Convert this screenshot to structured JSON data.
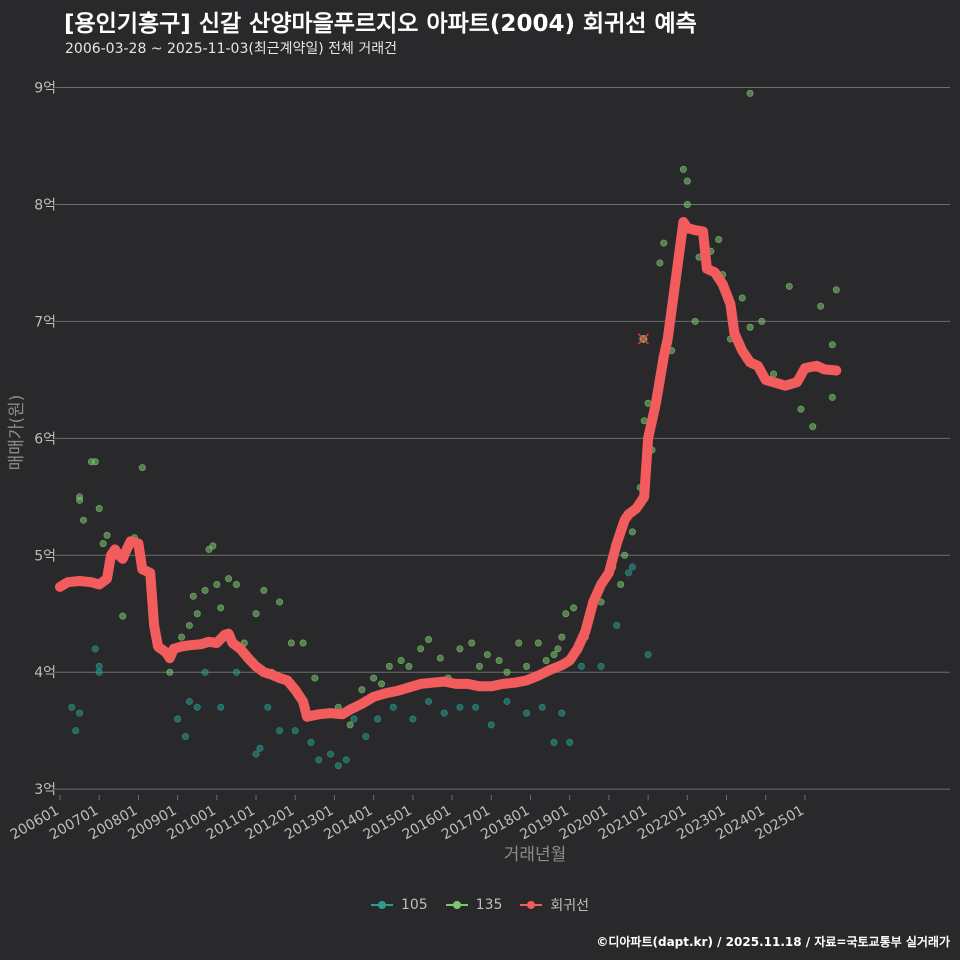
{
  "title": "[용인기흥구] 신갈 산양마을푸르지오 아파트(2004) 회귀선 예측",
  "subtitle": "2006-03-28 ~ 2025-11-03(최근계약일) 전체 거래건",
  "footer": "©디아파트(dapt.kr) / 2025.11.18 / 자료=국토교통부 실거래가",
  "colors": {
    "background": "#29292b",
    "grid": "#6e6e72",
    "s105": "#2a9d8f",
    "s135": "#7bc96f",
    "regression": "#f25c5c"
  },
  "chart_data": {
    "type": "scatter",
    "title": "[용인기흥구] 신갈 산양마을푸르지오 아파트(2004) 회귀선 예측",
    "xlabel": "거래년월",
    "ylabel": "매매가(원)",
    "xlim": [
      2006.0,
      2028.7
    ],
    "ylim": [
      2.95,
      9.15
    ],
    "x_ticks": [
      {
        "value": 2006.0,
        "label": "200601"
      },
      {
        "value": 2007.0,
        "label": "200701"
      },
      {
        "value": 2008.0,
        "label": "200801"
      },
      {
        "value": 2009.0,
        "label": "200901"
      },
      {
        "value": 2010.0,
        "label": "201001"
      },
      {
        "value": 2011.0,
        "label": "201101"
      },
      {
        "value": 2012.0,
        "label": "201201"
      },
      {
        "value": 2013.0,
        "label": "201301"
      },
      {
        "value": 2014.0,
        "label": "201401"
      },
      {
        "value": 2015.0,
        "label": "201501"
      },
      {
        "value": 2016.0,
        "label": "201601"
      },
      {
        "value": 2017.0,
        "label": "201701"
      },
      {
        "value": 2018.0,
        "label": "201801"
      },
      {
        "value": 2019.0,
        "label": "201901"
      },
      {
        "value": 2020.0,
        "label": "202001"
      },
      {
        "value": 2021.0,
        "label": "202101"
      },
      {
        "value": 2022.0,
        "label": "202201"
      },
      {
        "value": 2023.0,
        "label": "202301"
      },
      {
        "value": 2024.0,
        "label": "202401"
      },
      {
        "value": 2025.0,
        "label": "202501"
      }
    ],
    "y_ticks": [
      {
        "value": 3,
        "label": "3억"
      },
      {
        "value": 4,
        "label": "4억"
      },
      {
        "value": 5,
        "label": "5억"
      },
      {
        "value": 6,
        "label": "6억"
      },
      {
        "value": 7,
        "label": "7억"
      },
      {
        "value": 8,
        "label": "8억"
      },
      {
        "value": 9,
        "label": "9억"
      }
    ],
    "series": [
      {
        "name": "105",
        "color": "#2a9d8f",
        "points": [
          [
            2006.3,
            3.7
          ],
          [
            2006.4,
            3.5
          ],
          [
            2006.5,
            3.65
          ],
          [
            2006.9,
            4.2
          ],
          [
            2007.0,
            4.05
          ],
          [
            2007.0,
            4.0
          ],
          [
            2009.0,
            3.6
          ],
          [
            2009.2,
            3.45
          ],
          [
            2009.3,
            3.75
          ],
          [
            2009.5,
            3.7
          ],
          [
            2009.7,
            4.0
          ],
          [
            2010.1,
            3.7
          ],
          [
            2010.5,
            4.0
          ],
          [
            2011.0,
            3.3
          ],
          [
            2011.1,
            3.35
          ],
          [
            2011.3,
            3.7
          ],
          [
            2011.6,
            3.5
          ],
          [
            2012.0,
            3.5
          ],
          [
            2012.4,
            3.4
          ],
          [
            2012.6,
            3.25
          ],
          [
            2012.9,
            3.3
          ],
          [
            2013.1,
            3.2
          ],
          [
            2013.3,
            3.25
          ],
          [
            2013.5,
            3.6
          ],
          [
            2013.8,
            3.45
          ],
          [
            2014.1,
            3.6
          ],
          [
            2014.5,
            3.7
          ],
          [
            2015.0,
            3.6
          ],
          [
            2015.4,
            3.75
          ],
          [
            2015.8,
            3.65
          ],
          [
            2016.2,
            3.7
          ],
          [
            2016.6,
            3.7
          ],
          [
            2017.0,
            3.55
          ],
          [
            2017.4,
            3.75
          ],
          [
            2017.9,
            3.65
          ],
          [
            2018.3,
            3.7
          ],
          [
            2018.6,
            3.4
          ],
          [
            2018.8,
            3.65
          ],
          [
            2019.0,
            3.4
          ],
          [
            2019.3,
            4.05
          ],
          [
            2019.8,
            4.05
          ],
          [
            2020.2,
            4.4
          ],
          [
            2020.5,
            4.85
          ],
          [
            2020.6,
            4.9
          ],
          [
            2021.0,
            4.15
          ]
        ]
      },
      {
        "name": "135",
        "color": "#7bc96f",
        "points": [
          [
            2006.5,
            5.5
          ],
          [
            2006.5,
            5.47
          ],
          [
            2006.6,
            5.3
          ],
          [
            2006.8,
            5.8
          ],
          [
            2006.9,
            5.8
          ],
          [
            2007.0,
            5.4
          ],
          [
            2007.1,
            5.1
          ],
          [
            2007.2,
            5.17
          ],
          [
            2007.6,
            4.48
          ],
          [
            2007.9,
            5.15
          ],
          [
            2008.1,
            5.75
          ],
          [
            2008.5,
            4.2
          ],
          [
            2008.8,
            4.0
          ],
          [
            2009.1,
            4.3
          ],
          [
            2009.3,
            4.4
          ],
          [
            2009.4,
            4.65
          ],
          [
            2009.5,
            4.5
          ],
          [
            2009.7,
            4.7
          ],
          [
            2009.8,
            5.05
          ],
          [
            2009.9,
            5.08
          ],
          [
            2010.0,
            4.75
          ],
          [
            2010.1,
            4.55
          ],
          [
            2010.3,
            4.8
          ],
          [
            2010.5,
            4.75
          ],
          [
            2010.7,
            4.25
          ],
          [
            2011.0,
            4.5
          ],
          [
            2011.2,
            4.7
          ],
          [
            2011.4,
            4.0
          ],
          [
            2011.6,
            4.6
          ],
          [
            2011.9,
            4.25
          ],
          [
            2012.2,
            4.25
          ],
          [
            2012.5,
            3.95
          ],
          [
            2013.1,
            3.7
          ],
          [
            2013.4,
            3.55
          ],
          [
            2013.7,
            3.85
          ],
          [
            2014.0,
            3.95
          ],
          [
            2014.2,
            3.9
          ],
          [
            2014.4,
            4.05
          ],
          [
            2014.7,
            4.1
          ],
          [
            2014.9,
            4.05
          ],
          [
            2015.2,
            4.2
          ],
          [
            2015.4,
            4.28
          ],
          [
            2015.7,
            4.12
          ],
          [
            2015.9,
            3.95
          ],
          [
            2016.2,
            4.2
          ],
          [
            2016.5,
            4.25
          ],
          [
            2016.7,
            4.05
          ],
          [
            2016.9,
            4.15
          ],
          [
            2017.2,
            4.1
          ],
          [
            2017.4,
            4.0
          ],
          [
            2017.7,
            4.25
          ],
          [
            2017.9,
            4.05
          ],
          [
            2018.2,
            4.25
          ],
          [
            2018.4,
            4.1
          ],
          [
            2018.6,
            4.15
          ],
          [
            2018.7,
            4.2
          ],
          [
            2018.8,
            4.3
          ],
          [
            2018.9,
            4.5
          ],
          [
            2019.1,
            4.55
          ],
          [
            2019.4,
            4.3
          ],
          [
            2019.6,
            4.6
          ],
          [
            2019.8,
            4.6
          ],
          [
            2020.1,
            4.9
          ],
          [
            2020.3,
            4.75
          ],
          [
            2020.4,
            5.0
          ],
          [
            2020.6,
            5.2
          ],
          [
            2020.8,
            5.58
          ],
          [
            2020.9,
            6.15
          ],
          [
            2021.0,
            6.3
          ],
          [
            2021.1,
            5.9
          ],
          [
            2021.3,
            7.5
          ],
          [
            2021.4,
            7.67
          ],
          [
            2021.6,
            6.75
          ],
          [
            2021.9,
            8.3
          ],
          [
            2022.0,
            8.2
          ],
          [
            2022.0,
            8.0
          ],
          [
            2022.2,
            7.0
          ],
          [
            2022.3,
            7.55
          ],
          [
            2022.6,
            7.6
          ],
          [
            2022.8,
            7.7
          ],
          [
            2022.9,
            7.4
          ],
          [
            2023.1,
            6.85
          ],
          [
            2023.4,
            7.2
          ],
          [
            2023.6,
            6.95
          ],
          [
            2023.9,
            7.0
          ],
          [
            2024.2,
            6.55
          ],
          [
            2024.6,
            7.3
          ],
          [
            2024.9,
            6.25
          ],
          [
            2025.2,
            6.1
          ],
          [
            2025.4,
            7.13
          ],
          [
            2025.7,
            6.8
          ],
          [
            2025.8,
            7.27
          ],
          [
            2025.7,
            6.35
          ],
          [
            2023.6,
            8.95
          ]
        ]
      },
      {
        "name": "회귀선",
        "color": "#f25c5c",
        "points": [
          [
            2006.0,
            4.73
          ],
          [
            2006.2,
            4.77
          ],
          [
            2006.5,
            4.78
          ],
          [
            2006.8,
            4.77
          ],
          [
            2007.0,
            4.75
          ],
          [
            2007.2,
            4.8
          ],
          [
            2007.3,
            5.0
          ],
          [
            2007.4,
            5.05
          ],
          [
            2007.5,
            5.0
          ],
          [
            2007.6,
            4.97
          ],
          [
            2007.7,
            5.05
          ],
          [
            2007.8,
            5.12
          ],
          [
            2008.0,
            5.1
          ],
          [
            2008.1,
            4.88
          ],
          [
            2008.3,
            4.85
          ],
          [
            2008.4,
            4.4
          ],
          [
            2008.5,
            4.22
          ],
          [
            2008.7,
            4.17
          ],
          [
            2008.8,
            4.12
          ],
          [
            2008.9,
            4.2
          ],
          [
            2009.1,
            4.22
          ],
          [
            2009.3,
            4.23
          ],
          [
            2009.6,
            4.24
          ],
          [
            2009.8,
            4.26
          ],
          [
            2010.0,
            4.25
          ],
          [
            2010.2,
            4.32
          ],
          [
            2010.3,
            4.33
          ],
          [
            2010.4,
            4.25
          ],
          [
            2010.6,
            4.2
          ],
          [
            2010.8,
            4.12
          ],
          [
            2011.0,
            4.05
          ],
          [
            2011.2,
            4.0
          ],
          [
            2011.4,
            3.98
          ],
          [
            2011.6,
            3.95
          ],
          [
            2011.8,
            3.93
          ],
          [
            2012.0,
            3.85
          ],
          [
            2012.2,
            3.75
          ],
          [
            2012.3,
            3.62
          ],
          [
            2012.6,
            3.64
          ],
          [
            2012.9,
            3.65
          ],
          [
            2013.2,
            3.64
          ],
          [
            2013.4,
            3.68
          ],
          [
            2013.7,
            3.73
          ],
          [
            2014.0,
            3.79
          ],
          [
            2014.3,
            3.82
          ],
          [
            2014.6,
            3.84
          ],
          [
            2014.9,
            3.87
          ],
          [
            2015.2,
            3.9
          ],
          [
            2015.5,
            3.91
          ],
          [
            2015.8,
            3.92
          ],
          [
            2016.1,
            3.9
          ],
          [
            2016.4,
            3.9
          ],
          [
            2016.7,
            3.88
          ],
          [
            2017.0,
            3.88
          ],
          [
            2017.3,
            3.9
          ],
          [
            2017.6,
            3.91
          ],
          [
            2017.9,
            3.93
          ],
          [
            2018.2,
            3.97
          ],
          [
            2018.5,
            4.02
          ],
          [
            2018.8,
            4.06
          ],
          [
            2019.0,
            4.1
          ],
          [
            2019.2,
            4.2
          ],
          [
            2019.4,
            4.35
          ],
          [
            2019.6,
            4.6
          ],
          [
            2019.8,
            4.75
          ],
          [
            2020.0,
            4.85
          ],
          [
            2020.2,
            5.1
          ],
          [
            2020.4,
            5.3
          ],
          [
            2020.5,
            5.35
          ],
          [
            2020.7,
            5.4
          ],
          [
            2020.9,
            5.5
          ],
          [
            2021.0,
            6.0
          ],
          [
            2021.2,
            6.3
          ],
          [
            2021.4,
            6.7
          ],
          [
            2021.5,
            6.85
          ],
          [
            2021.7,
            7.35
          ],
          [
            2021.8,
            7.6
          ],
          [
            2021.9,
            7.85
          ],
          [
            2022.0,
            7.8
          ],
          [
            2022.2,
            7.78
          ],
          [
            2022.4,
            7.77
          ],
          [
            2022.5,
            7.45
          ],
          [
            2022.7,
            7.42
          ],
          [
            2022.9,
            7.32
          ],
          [
            2023.1,
            7.15
          ],
          [
            2023.2,
            6.9
          ],
          [
            2023.4,
            6.75
          ],
          [
            2023.6,
            6.65
          ],
          [
            2023.8,
            6.62
          ],
          [
            2024.0,
            6.5
          ],
          [
            2024.2,
            6.48
          ],
          [
            2024.5,
            6.45
          ],
          [
            2024.8,
            6.48
          ],
          [
            2025.0,
            6.6
          ],
          [
            2025.3,
            6.62
          ],
          [
            2025.5,
            6.59
          ],
          [
            2025.8,
            6.58
          ]
        ]
      }
    ],
    "highlight_point": [
      2020.88,
      6.85
    ],
    "legend": [
      "105",
      "135",
      "회귀선"
    ],
    "legend_position": "bottom"
  }
}
